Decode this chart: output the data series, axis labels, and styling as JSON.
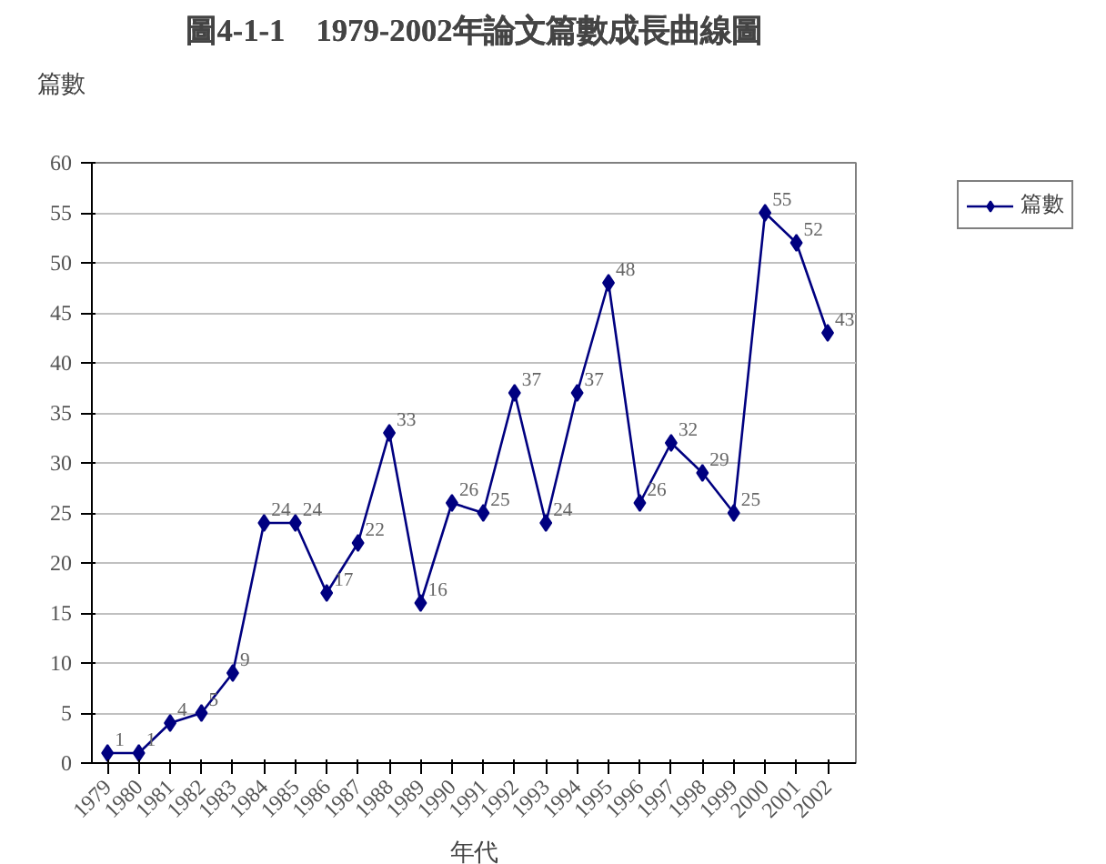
{
  "chart_data": {
    "type": "line",
    "title": "圖4-1-1　1979-2002年論文篇數成長曲線圖",
    "xlabel": "年代",
    "ylabel": "篇數",
    "categories": [
      "1979",
      "1980",
      "1981",
      "1982",
      "1983",
      "1984",
      "1985",
      "1986",
      "1987",
      "1988",
      "1989",
      "1990",
      "1991",
      "1992",
      "1993",
      "1994",
      "1995",
      "1996",
      "1997",
      "1998",
      "1999",
      "2000",
      "2001",
      "2002"
    ],
    "series": [
      {
        "name": "篇數",
        "color": "#000080",
        "values": [
          1,
          1,
          4,
          5,
          9,
          24,
          24,
          17,
          22,
          33,
          16,
          26,
          25,
          37,
          24,
          37,
          48,
          26,
          32,
          29,
          25,
          55,
          52,
          43
        ]
      }
    ],
    "ylim": [
      0,
      60
    ],
    "yticks": [
      0,
      5,
      10,
      15,
      20,
      25,
      30,
      35,
      40,
      45,
      50,
      55,
      60
    ],
    "grid": "y",
    "legend": "top right",
    "marker": "diamond",
    "line_style": "solid",
    "data_labels": true
  }
}
